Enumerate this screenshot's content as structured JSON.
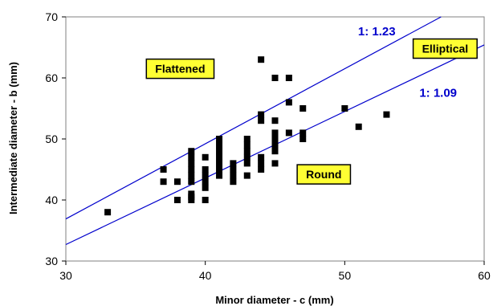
{
  "chart_data": {
    "type": "scatter",
    "xlabel": "Minor diameter - c (mm)",
    "ylabel": "Intermediate diameter - b (mm)",
    "xlim": [
      30,
      60
    ],
    "ylim": [
      30,
      70
    ],
    "xticks": [
      "30",
      "40",
      "50",
      "60"
    ],
    "yticks": [
      "30",
      "40",
      "50",
      "60",
      "70"
    ],
    "grid": false,
    "points": [
      [
        33,
        38
      ],
      [
        37,
        43
      ],
      [
        37,
        45
      ],
      [
        38,
        40
      ],
      [
        38,
        43
      ],
      [
        39,
        40
      ],
      [
        39,
        40.5
      ],
      [
        39,
        41
      ],
      [
        39,
        43
      ],
      [
        39,
        44
      ],
      [
        39,
        45
      ],
      [
        39,
        46
      ],
      [
        39,
        47
      ],
      [
        39,
        48
      ],
      [
        40,
        40
      ],
      [
        40,
        42
      ],
      [
        40,
        43
      ],
      [
        40,
        44
      ],
      [
        40,
        45
      ],
      [
        40,
        47
      ],
      [
        41,
        44
      ],
      [
        41,
        45
      ],
      [
        41,
        46
      ],
      [
        41,
        47
      ],
      [
        41,
        48
      ],
      [
        41,
        49
      ],
      [
        41,
        50
      ],
      [
        42,
        43
      ],
      [
        42,
        44
      ],
      [
        42,
        45
      ],
      [
        42,
        46
      ],
      [
        43,
        44
      ],
      [
        43,
        46
      ],
      [
        43,
        47
      ],
      [
        43,
        48
      ],
      [
        43,
        49
      ],
      [
        43,
        50
      ],
      [
        44,
        45
      ],
      [
        44,
        46
      ],
      [
        44,
        47
      ],
      [
        44,
        53
      ],
      [
        44,
        54
      ],
      [
        44,
        63
      ],
      [
        45,
        46
      ],
      [
        45,
        48
      ],
      [
        45,
        49
      ],
      [
        45,
        50
      ],
      [
        45,
        51
      ],
      [
        45,
        53
      ],
      [
        45,
        60
      ],
      [
        46,
        51
      ],
      [
        46,
        56
      ],
      [
        46,
        60
      ],
      [
        47,
        50
      ],
      [
        47,
        51
      ],
      [
        47,
        55
      ],
      [
        50,
        55
      ],
      [
        51,
        52
      ],
      [
        53,
        54
      ]
    ],
    "marker_color": "#000000",
    "reference_lines": [
      {
        "label": "1: 1.23",
        "slope": 1.23,
        "color": "#0000cc"
      },
      {
        "label": "1: 1.09",
        "slope": 1.09,
        "color": "#0000cc"
      }
    ],
    "regions": [
      {
        "label": "Flattened",
        "x": 38.2,
        "y": 61.5
      },
      {
        "label": "Elliptical",
        "x": 57.2,
        "y": 64.8
      },
      {
        "label": "Round",
        "x": 48.5,
        "y": 44.2
      }
    ],
    "ratio_label_positions": [
      {
        "label": "1: 1.23",
        "x": 52.3,
        "y": 67.0
      },
      {
        "label": "1: 1.09",
        "x": 56.7,
        "y": 56.9
      }
    ],
    "region_box_fill": "#ffff33"
  }
}
